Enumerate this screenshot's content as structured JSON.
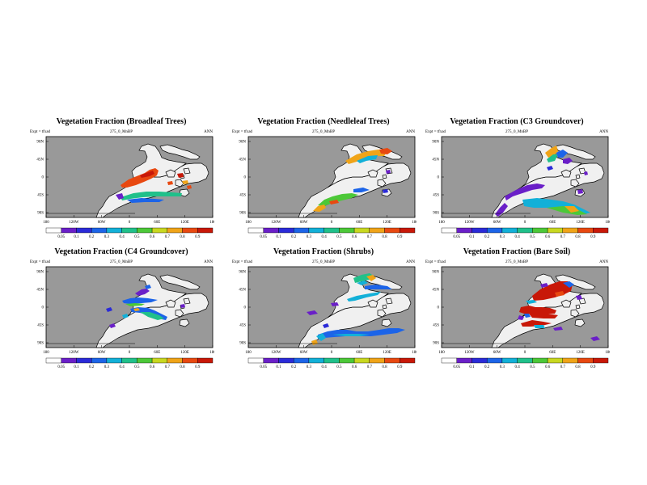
{
  "panels": [
    {
      "title": "Vegetation Fraction (Broadleaf Trees)",
      "expt": "Expt = tfxad",
      "run": "275_0_MnBP",
      "season": "ANN"
    },
    {
      "title": "Vegetation Fraction (Needleleaf Trees)",
      "expt": "Expt = tfxad",
      "run": "275_0_MnBP",
      "season": "ANN"
    },
    {
      "title": "Vegetation Fraction (C3 Groundcover)",
      "expt": "Expt = tfxad",
      "run": "275_0_MnBP",
      "season": "ANN"
    },
    {
      "title": "Vegetation Fraction (C4 Groundcover)",
      "expt": "Expt = tfxad",
      "run": "275_0_MnBP",
      "season": "ANN"
    },
    {
      "title": "Vegetation Fraction (Shrubs)",
      "expt": "Expt = tfxad",
      "run": "275_0_MnBP",
      "season": "ANN"
    },
    {
      "title": "Vegetation Fraction (Bare Soil)",
      "expt": "Expt = tfxad",
      "run": "275_0_MnBP",
      "season": "ANN"
    }
  ],
  "chart_data": {
    "type": "heatmap",
    "variable": "Vegetation Fraction",
    "x_ticks": [
      "180",
      "120W",
      "60W",
      "0",
      "60E",
      "120E",
      "180"
    ],
    "y_ticks": [
      "90N",
      "45N",
      "0",
      "45S",
      "90S"
    ],
    "colorbar": {
      "labels": [
        "0.05",
        "0.1",
        "0.2",
        "0.3",
        "0.4",
        "0.5",
        "0.6",
        "0.7",
        "0.8",
        "0.9"
      ],
      "colors": [
        "#ffffff",
        "#6a1fc8",
        "#2a2ad8",
        "#1c64e8",
        "#12b0d8",
        "#20c08a",
        "#4cc838",
        "#c8d820",
        "#f0a418",
        "#e84810",
        "#c81808"
      ]
    },
    "colors": {
      "ocean": "#999999",
      "land": "#f0f0f0"
    }
  }
}
